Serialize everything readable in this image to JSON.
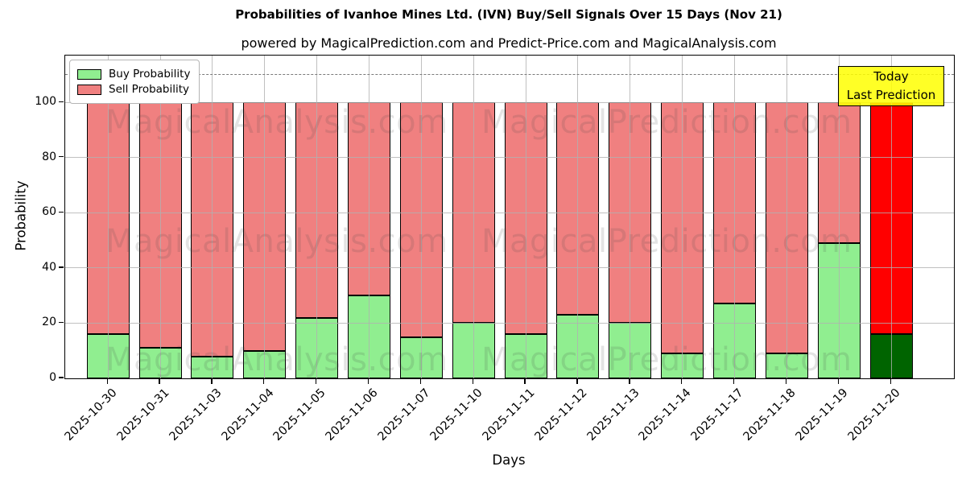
{
  "subtitle": "powered by MagicalPrediction.com and Predict-Price.com and MagicalAnalysis.com",
  "watermarks": {
    "left": "MagicalAnalysis.com",
    "right": "MagicalPrediction.com"
  },
  "annotation": {
    "line1": "Today",
    "line2": "Last Prediction",
    "bg": "#ffff00"
  },
  "chart_data": {
    "type": "bar",
    "stacked": true,
    "title": "Probabilities of Ivanhoe Mines Ltd. (IVN) Buy/Sell Signals Over 15 Days (Nov 21)",
    "xlabel": "Days",
    "ylabel": "Probability",
    "categories": [
      "2025-10-30",
      "2025-10-31",
      "2025-11-03",
      "2025-11-04",
      "2025-11-05",
      "2025-11-06",
      "2025-11-07",
      "2025-11-10",
      "2025-11-11",
      "2025-11-12",
      "2025-11-13",
      "2025-11-14",
      "2025-11-17",
      "2025-11-18",
      "2025-11-19",
      "2025-11-20"
    ],
    "series": [
      {
        "name": "Buy Probability",
        "color": "#90ee90",
        "highlight_last_color": "#006400",
        "values": [
          16,
          11,
          8,
          10,
          22,
          30,
          15,
          20,
          16,
          23,
          20,
          9,
          27,
          9,
          49,
          16
        ]
      },
      {
        "name": "Sell Probability",
        "color": "#f08080",
        "highlight_last_color": "#ff0000",
        "values": [
          84,
          89,
          92,
          90,
          78,
          70,
          85,
          80,
          84,
          77,
          80,
          91,
          73,
          91,
          51,
          84
        ]
      }
    ],
    "yticks": [
      0,
      20,
      40,
      60,
      80,
      100
    ],
    "ylim": [
      0,
      117
    ],
    "grid": true,
    "grid_color": "#b0b0b0",
    "bar_edge_color": "#000000",
    "dashed_line_y": 110,
    "dashed_line_color": "#7a7a7a",
    "legend_position": "upper left",
    "highlighted_category": "2025-11-20"
  }
}
